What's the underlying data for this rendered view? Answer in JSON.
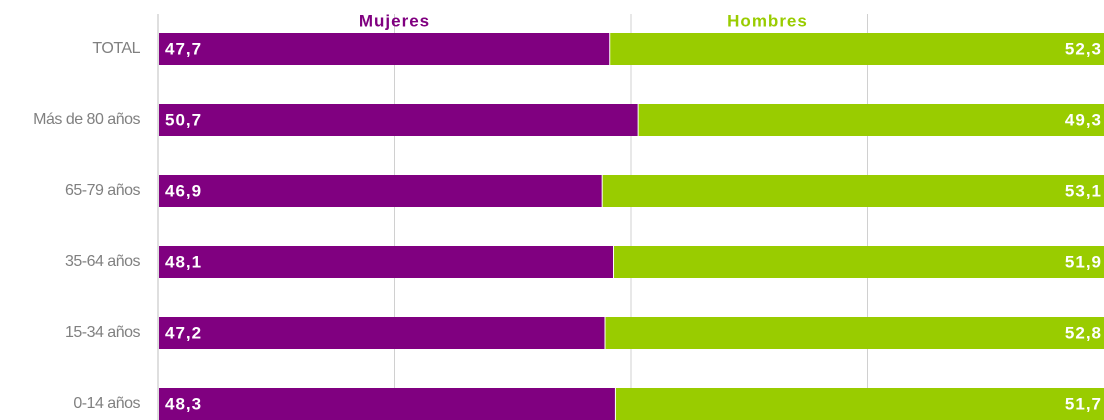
{
  "chart_data": {
    "type": "stacked_bar_horizontal",
    "categories": [
      "TOTAL",
      "Más de 80 años",
      "65-79 años",
      "35-64 años",
      "15-34 años",
      "0-14 años"
    ],
    "series": [
      {
        "name": "Mujeres",
        "color": "#800080",
        "values": [
          47.7,
          50.7,
          46.9,
          48.1,
          47.2,
          48.3
        ],
        "value_labels": [
          "47,7",
          "50,7",
          "46,9",
          "48,1",
          "47,2",
          "48,3"
        ]
      },
      {
        "name": "Hombres",
        "color": "#99cc00",
        "values": [
          52.3,
          49.3,
          53.1,
          51.9,
          52.8,
          51.7
        ],
        "value_labels": [
          "52,3",
          "49,3",
          "53,1",
          "51,9",
          "52,8",
          "51,7"
        ]
      }
    ],
    "xlim": [
      0,
      100
    ],
    "xticks": [
      0,
      25,
      50,
      75,
      100
    ],
    "grid": true,
    "legend": "top"
  }
}
